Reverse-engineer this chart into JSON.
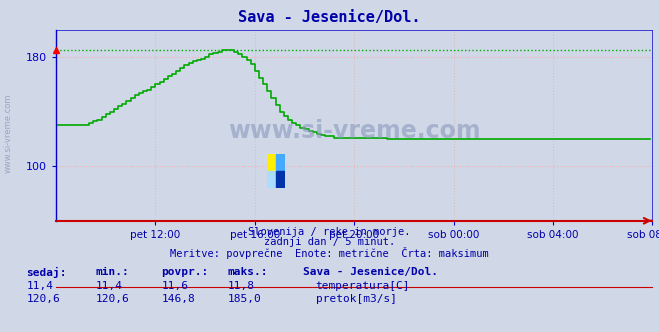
{
  "title": "Sava - Jesenice/Dol.",
  "bg_color": "#d0d8e8",
  "plot_bg_color": "#d0d8e8",
  "grid_color_h": "#ffaaaa",
  "grid_color_v": "#ddbbbb",
  "axis_color": "#0000cc",
  "title_color": "#0000aa",
  "text_color": "#0000aa",
  "max_line_y": 185,
  "pretok_color": "#00aa00",
  "temp_color": "#cc0000",
  "watermark_color": "#8899bb",
  "ylim_min": 60,
  "ylim_max": 200,
  "yticks": [
    100,
    180
  ],
  "xtick_labels": [
    "pet 12:00",
    "pet 16:00",
    "pet 20:00",
    "sob 00:00",
    "sob 04:00",
    "sob 08:00"
  ],
  "xtick_positions": [
    48,
    96,
    144,
    192,
    240,
    288
  ],
  "footer_line1": "Slovenija / reke in morje.",
  "footer_line2": "zadnji dan / 5 minut.",
  "footer_line3": "Meritve: povprečne  Enote: metrične  Črta: maksimum",
  "sedaj_label": "sedaj:",
  "min_label": "min.:",
  "povpr_label": "povpr.:",
  "maks_label": "maks.:",
  "station_label": "Sava - Jesenice/Dol.",
  "temp_sedaj": "11,4",
  "temp_min": "11,4",
  "temp_povpr": "11,6",
  "temp_maks": "11,8",
  "pretok_sedaj": "120,6",
  "pretok_min": "120,6",
  "pretok_povpr": "146,8",
  "pretok_maks": "185,0",
  "temp_label": "temperatura[C]",
  "pretok_label": "pretok[m3/s]",
  "pretok_data": [
    130,
    130,
    130,
    130,
    130,
    130,
    130,
    130,
    130,
    130,
    130,
    130,
    130,
    130,
    130,
    130,
    132,
    132,
    133,
    133,
    134,
    134,
    136,
    136,
    138,
    138,
    140,
    140,
    142,
    142,
    144,
    144,
    146,
    146,
    148,
    148,
    150,
    150,
    152,
    152,
    154,
    154,
    155,
    155,
    156,
    156,
    158,
    158,
    160,
    160,
    162,
    162,
    164,
    164,
    166,
    166,
    168,
    168,
    170,
    170,
    172,
    172,
    174,
    174,
    176,
    176,
    177,
    177,
    178,
    178,
    179,
    179,
    180,
    180,
    182,
    182,
    183,
    183,
    184,
    184,
    185,
    185,
    185,
    185,
    185,
    185,
    184,
    184,
    182,
    182,
    180,
    180,
    178,
    178,
    175,
    175,
    170,
    170,
    165,
    165,
    160,
    160,
    155,
    155,
    150,
    150,
    145,
    145,
    140,
    140,
    137,
    137,
    134,
    134,
    132,
    132,
    130,
    130,
    128,
    128,
    127,
    127,
    126,
    126,
    125,
    125,
    124,
    124,
    123,
    123,
    122,
    122,
    122,
    122,
    121,
    121,
    121,
    121,
    121,
    121,
    121,
    121,
    121,
    121,
    121,
    121,
    121,
    121,
    121,
    121,
    121,
    121,
    121,
    121,
    121,
    121,
    121,
    121,
    121,
    121,
    120,
    120,
    120,
    120,
    120,
    120,
    120,
    120,
    120,
    120,
    120,
    120,
    120,
    120,
    120,
    120,
    120,
    120,
    120,
    120,
    120,
    120,
    120,
    120,
    120,
    120,
    120,
    120,
    120,
    120,
    120,
    120,
    120,
    120,
    120,
    120,
    120,
    120,
    120,
    120,
    120,
    120,
    120,
    120,
    120,
    120,
    120,
    120,
    120,
    120,
    120,
    120,
    120,
    120,
    120,
    120,
    120,
    120,
    120,
    120,
    120,
    120,
    120,
    120,
    120,
    120,
    120,
    120,
    120,
    120,
    120,
    120,
    120,
    120,
    120,
    120,
    120,
    120,
    120,
    120,
    120,
    120,
    120,
    120,
    120,
    120,
    120,
    120,
    120,
    120,
    120,
    120,
    120,
    120,
    120,
    120,
    120,
    120,
    120,
    120,
    120,
    120,
    120,
    120,
    120,
    120,
    120,
    120,
    120,
    120,
    120,
    120,
    120,
    120,
    120,
    120,
    120,
    120,
    120,
    120,
    120,
    120,
    120,
    120,
    120,
    120,
    120,
    120
  ],
  "temp_data_value": 11.4,
  "logo_colors": [
    "#ffee00",
    "#44aaff",
    "#aaddff",
    "#0033aa"
  ]
}
